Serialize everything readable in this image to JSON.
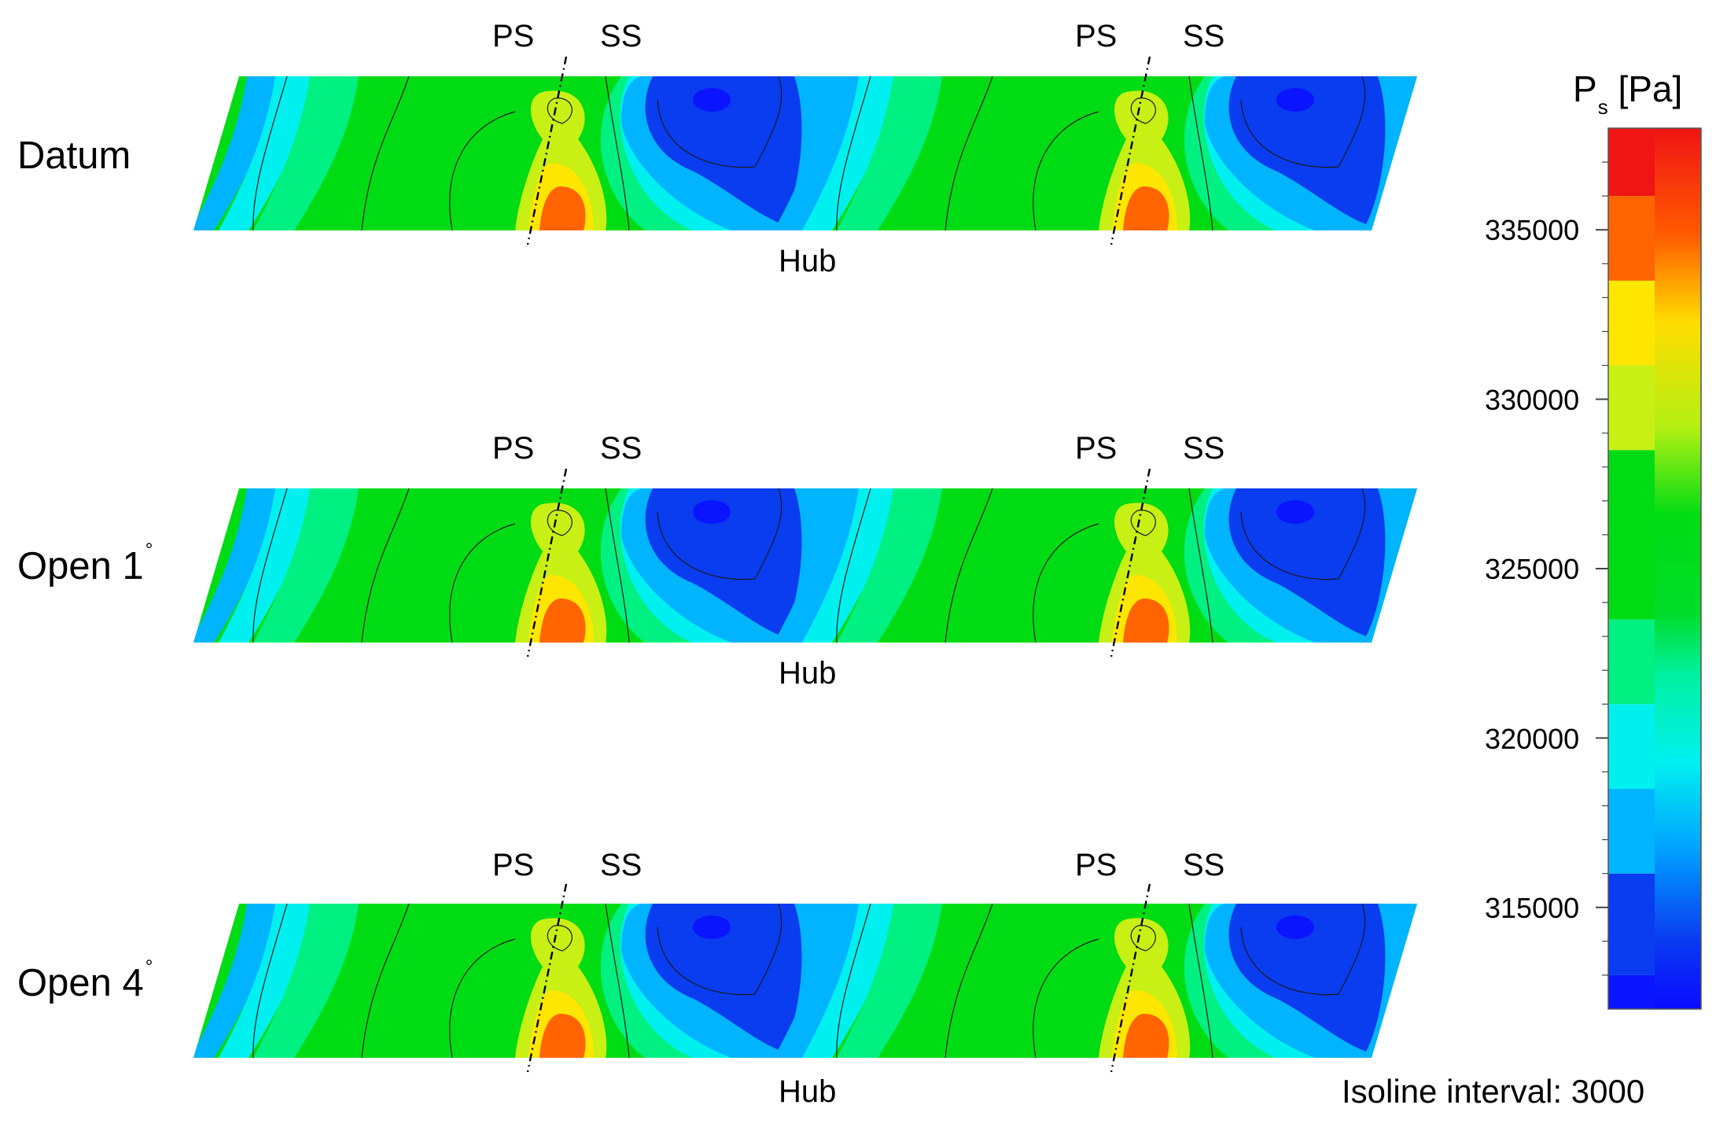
{
  "chart_data": {
    "type": "heatmap",
    "panels": [
      {
        "label": "Datum",
        "superscript": ""
      },
      {
        "label": "Open 1",
        "superscript": "°"
      },
      {
        "label": "Open 4",
        "superscript": "°"
      }
    ],
    "blade_markers": {
      "pressure_side": "PS",
      "suction_side": "SS",
      "passages": 2
    },
    "bottom_label": "Hub",
    "colorbar": {
      "symbol": "P",
      "subscript": "s",
      "unit": "[Pa]",
      "range": [
        312000,
        338000
      ],
      "ticks": [
        "335000",
        "330000",
        "325000",
        "320000",
        "315000"
      ],
      "tick_values": [
        335000,
        330000,
        325000,
        320000,
        315000
      ],
      "bands": [
        {
          "from": 312000,
          "to": 313000,
          "color": "#0a14ff"
        },
        {
          "from": 313000,
          "to": 316000,
          "color": "#0a3cf0"
        },
        {
          "from": 316000,
          "to": 318500,
          "color": "#00b4ff"
        },
        {
          "from": 318500,
          "to": 321000,
          "color": "#00f0f0"
        },
        {
          "from": 321000,
          "to": 323500,
          "color": "#00f082"
        },
        {
          "from": 323500,
          "to": 328500,
          "color": "#00dc14"
        },
        {
          "from": 328500,
          "to": 331000,
          "color": "#c8f014"
        },
        {
          "from": 331000,
          "to": 333500,
          "color": "#ffe600"
        },
        {
          "from": 333500,
          "to": 336000,
          "color": "#ff6400"
        },
        {
          "from": 336000,
          "to": 338000,
          "color": "#f01414"
        }
      ]
    },
    "isoline_note": "Isoline interval: 3000"
  }
}
